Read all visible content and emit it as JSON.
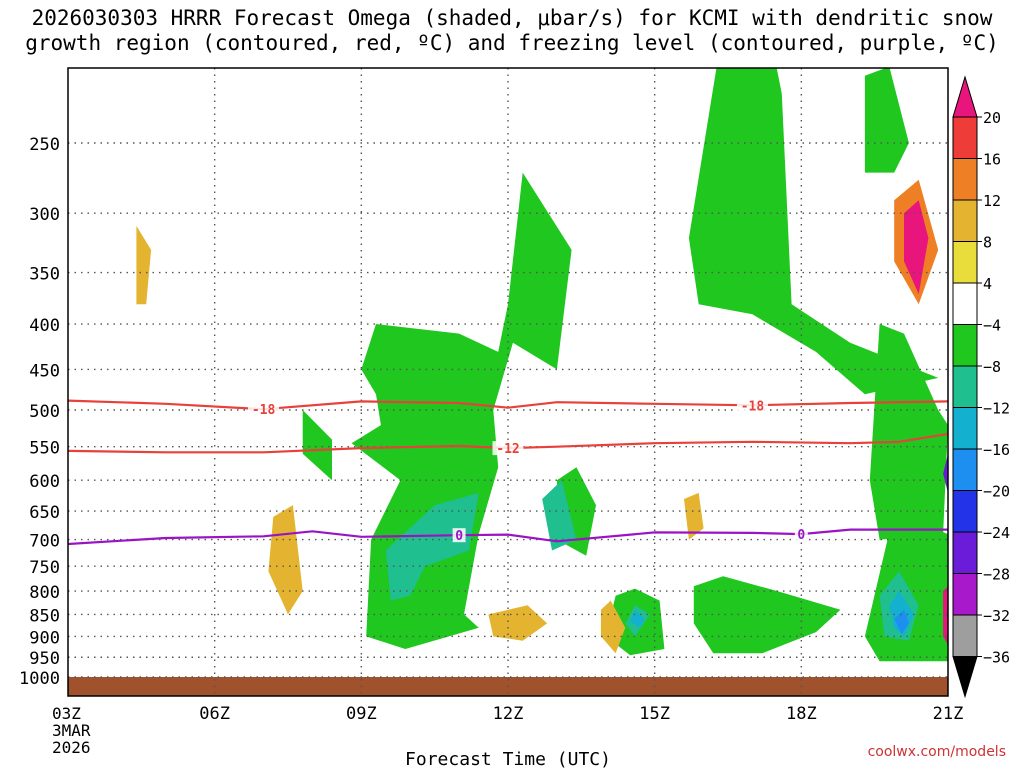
{
  "chart_data": {
    "type": "heatmap",
    "title_line1": "2026030303 HRRR Forecast Omega (shaded, μbar/s) for KCMI with dendritic snow",
    "title_line2": "growth region (contoured, red, ºC) and freezing level (contoured, purple, ºC)",
    "xlabel": "Forecast Time (UTC)",
    "ylabel": "",
    "x_start_label": [
      "03Z",
      "3MAR",
      "2026"
    ],
    "x_ticks": [
      {
        "hour": 0,
        "label": "03Z"
      },
      {
        "hour": 3,
        "label": "06Z"
      },
      {
        "hour": 6,
        "label": "09Z"
      },
      {
        "hour": 9,
        "label": "12Z"
      },
      {
        "hour": 12,
        "label": "15Z"
      },
      {
        "hour": 15,
        "label": "18Z"
      },
      {
        "hour": 18,
        "label": "21Z"
      }
    ],
    "xlim": [
      0,
      18
    ],
    "y_ticks": [
      250,
      300,
      350,
      400,
      450,
      500,
      550,
      600,
      650,
      700,
      750,
      800,
      850,
      900,
      950,
      1000
    ],
    "ylim_hpa": [
      200,
      1010
    ],
    "ground_level_hpa": 1000,
    "colorbar": {
      "levels": [
        "20",
        "16",
        "12",
        "8",
        "4",
        "−4",
        "−8",
        "−12",
        "−16",
        "−20",
        "−24",
        "−28",
        "−32",
        "−36"
      ],
      "colors": [
        "#e8157d",
        "#ee3c39",
        "#ee7f24",
        "#e4b431",
        "#e8dd3a",
        "#ffffff",
        "#1fc71f",
        "#1fbf8f",
        "#14b0cf",
        "#1c8ff0",
        "#2233e8",
        "#6a1cd8",
        "#a819cc",
        "#9e9e9e",
        "#000000"
      ]
    },
    "contours": [
      {
        "name": "dgz-minus18",
        "label": "-18",
        "color": "#e8403a",
        "points": [
          [
            0,
            488
          ],
          [
            2,
            492
          ],
          [
            4,
            499
          ],
          [
            6,
            489
          ],
          [
            8,
            491
          ],
          [
            9,
            497
          ],
          [
            10,
            490
          ],
          [
            12,
            492
          ],
          [
            14,
            494
          ],
          [
            16,
            491
          ],
          [
            18,
            489
          ]
        ]
      },
      {
        "name": "dgz-minus12",
        "label": "-12",
        "color": "#e8403a",
        "points": [
          [
            0,
            556
          ],
          [
            2,
            558
          ],
          [
            4,
            558
          ],
          [
            6,
            552
          ],
          [
            8,
            549
          ],
          [
            9,
            552
          ],
          [
            10,
            550
          ],
          [
            12,
            545
          ],
          [
            14,
            543
          ],
          [
            16,
            545
          ],
          [
            17,
            543
          ],
          [
            18,
            532
          ]
        ]
      },
      {
        "name": "freezing-level-0",
        "label": "0",
        "color": "#9a14c4",
        "points": [
          [
            0,
            708
          ],
          [
            2,
            697
          ],
          [
            4,
            694
          ],
          [
            5,
            685
          ],
          [
            6,
            695
          ],
          [
            8,
            692
          ],
          [
            9,
            691
          ],
          [
            10,
            703
          ],
          [
            12,
            687
          ],
          [
            14,
            688
          ],
          [
            15,
            690
          ],
          [
            16,
            682
          ],
          [
            18,
            682
          ]
        ]
      }
    ],
    "contour_label_positions": [
      {
        "label": "-18",
        "hour": 4,
        "hpa": 499,
        "color": "#e8403a"
      },
      {
        "label": "-18",
        "hour": 14,
        "hpa": 494,
        "color": "#e8403a"
      },
      {
        "label": "-12",
        "hour": 9,
        "hpa": 552,
        "color": "#e8403a"
      },
      {
        "label": "0",
        "hour": 8,
        "hpa": 692,
        "color": "#9a14c4"
      },
      {
        "label": "0",
        "hour": 15,
        "hpa": 690,
        "color": "#9a14c4"
      }
    ],
    "shaded_regions": [
      {
        "level": "−4",
        "region": [
          [
            4.8,
            500
          ],
          [
            4.8,
            560
          ],
          [
            5.4,
            600
          ],
          [
            5.4,
            540
          ]
        ]
      },
      {
        "level": "−4",
        "region": [
          [
            6,
            450
          ],
          [
            6.3,
            400
          ],
          [
            8,
            410
          ],
          [
            8.8,
            430
          ],
          [
            9,
            380
          ],
          [
            9.3,
            270
          ],
          [
            10.3,
            330
          ],
          [
            10,
            450
          ],
          [
            9.1,
            420
          ],
          [
            8.7,
            500
          ],
          [
            8.8,
            580
          ],
          [
            8.4,
            690
          ],
          [
            8.1,
            850
          ],
          [
            8.4,
            880
          ],
          [
            6.9,
            930
          ],
          [
            6.1,
            900
          ],
          [
            6.2,
            700
          ],
          [
            6.8,
            600
          ],
          [
            5.8,
            545
          ],
          [
            6.4,
            520
          ],
          [
            6.3,
            480
          ]
        ]
      },
      {
        "level": "−4",
        "region": [
          [
            10,
            600
          ],
          [
            10.4,
            580
          ],
          [
            10.8,
            640
          ],
          [
            10.6,
            730
          ],
          [
            10,
            700
          ]
        ]
      },
      {
        "level": "−4",
        "region": [
          [
            11.2,
            810
          ],
          [
            11.6,
            795
          ],
          [
            12.1,
            820
          ],
          [
            12.2,
            930
          ],
          [
            11.5,
            945
          ],
          [
            11,
            900
          ]
        ]
      },
      {
        "level": "−4",
        "region": [
          [
            12.7,
            320
          ],
          [
            13.3,
            200
          ],
          [
            14.2,
            170
          ],
          [
            14.6,
            220
          ],
          [
            14.8,
            380
          ],
          [
            16,
            420
          ],
          [
            17.8,
            460
          ],
          [
            16.3,
            480
          ],
          [
            15.3,
            430
          ],
          [
            14,
            390
          ],
          [
            12.9,
            380
          ]
        ]
      },
      {
        "level": "−4",
        "region": [
          [
            12.8,
            790
          ],
          [
            13.4,
            770
          ],
          [
            14.5,
            800
          ],
          [
            15.8,
            840
          ],
          [
            15.3,
            890
          ],
          [
            14.2,
            940
          ],
          [
            13.2,
            940
          ],
          [
            12.8,
            870
          ]
        ]
      },
      {
        "level": "−4",
        "region": [
          [
            16.6,
            400
          ],
          [
            17.1,
            410
          ],
          [
            17.8,
            500
          ],
          [
            18,
            520
          ],
          [
            17.9,
            690
          ],
          [
            16.6,
            700
          ],
          [
            16.4,
            600
          ]
        ]
      },
      {
        "level": "−4",
        "region": [
          [
            16.3,
            900
          ],
          [
            16.9,
            650
          ],
          [
            18,
            690
          ],
          [
            18,
            960
          ],
          [
            16.6,
            960
          ]
        ]
      },
      {
        "level": "−4",
        "region": [
          [
            16.3,
            210
          ],
          [
            16.8,
            205
          ],
          [
            17.2,
            250
          ],
          [
            16.9,
            270
          ],
          [
            16.3,
            270
          ]
        ]
      },
      {
        "level": "−8",
        "region": [
          [
            7.5,
            640
          ],
          [
            8.4,
            620
          ],
          [
            8.2,
            720
          ],
          [
            7.3,
            750
          ],
          [
            7,
            810
          ],
          [
            6.6,
            820
          ],
          [
            6.5,
            720
          ]
        ]
      },
      {
        "level": "−8",
        "region": [
          [
            9.7,
            630
          ],
          [
            10.1,
            600
          ],
          [
            10.4,
            700
          ],
          [
            9.9,
            720
          ]
        ]
      },
      {
        "level": "−8",
        "region": [
          [
            11.6,
            830
          ],
          [
            11.9,
            850
          ],
          [
            11.6,
            900
          ],
          [
            11.4,
            870
          ]
        ]
      },
      {
        "level": "−8",
        "region": [
          [
            16.6,
            810
          ],
          [
            17,
            760
          ],
          [
            17.4,
            830
          ],
          [
            17.2,
            910
          ],
          [
            16.7,
            900
          ]
        ]
      },
      {
        "level": "−12",
        "region": [
          [
            11.6,
            840
          ],
          [
            11.8,
            860
          ],
          [
            11.7,
            880
          ],
          [
            11.5,
            865
          ]
        ]
      },
      {
        "level": "−12",
        "region": [
          [
            16.8,
            830
          ],
          [
            17,
            800
          ],
          [
            17.3,
            850
          ],
          [
            17.1,
            900
          ],
          [
            16.9,
            880
          ]
        ]
      },
      {
        "level": "−16",
        "region": [
          [
            16.9,
            860
          ],
          [
            17.1,
            840
          ],
          [
            17.2,
            870
          ],
          [
            17.05,
            895
          ]
        ]
      },
      {
        "level": "−24",
        "region": [
          [
            17.9,
            590
          ],
          [
            18,
            560
          ],
          [
            18,
            620
          ]
        ]
      },
      {
        "level": "8",
        "region": [
          [
            4.2,
            660
          ],
          [
            4.6,
            640
          ],
          [
            4.8,
            800
          ],
          [
            4.5,
            850
          ],
          [
            4.1,
            760
          ]
        ]
      },
      {
        "level": "8",
        "region": [
          [
            1.4,
            310
          ],
          [
            1.7,
            330
          ],
          [
            1.6,
            380
          ],
          [
            1.4,
            380
          ]
        ]
      },
      {
        "level": "8",
        "region": [
          [
            8.6,
            850
          ],
          [
            9.4,
            830
          ],
          [
            9.8,
            870
          ],
          [
            9.3,
            910
          ],
          [
            8.7,
            900
          ]
        ]
      },
      {
        "level": "8",
        "region": [
          [
            10.9,
            840
          ],
          [
            11.1,
            820
          ],
          [
            11.4,
            880
          ],
          [
            11.2,
            940
          ],
          [
            10.9,
            900
          ]
        ]
      },
      {
        "level": "8",
        "region": [
          [
            12.6,
            630
          ],
          [
            12.9,
            620
          ],
          [
            13,
            680
          ],
          [
            12.7,
            700
          ]
        ]
      },
      {
        "level": "12",
        "region": [
          [
            16.9,
            290
          ],
          [
            17.4,
            275
          ],
          [
            17.8,
            330
          ],
          [
            17.4,
            380
          ],
          [
            16.9,
            340
          ]
        ]
      },
      {
        "level": "20",
        "region": [
          [
            17.1,
            300
          ],
          [
            17.4,
            290
          ],
          [
            17.6,
            320
          ],
          [
            17.4,
            370
          ],
          [
            17.1,
            340
          ]
        ]
      },
      {
        "level": "20",
        "region": [
          [
            17.9,
            800
          ],
          [
            18,
            790
          ],
          [
            18,
            920
          ],
          [
            17.9,
            900
          ]
        ]
      }
    ]
  },
  "watermark": "coolwx.com/models"
}
